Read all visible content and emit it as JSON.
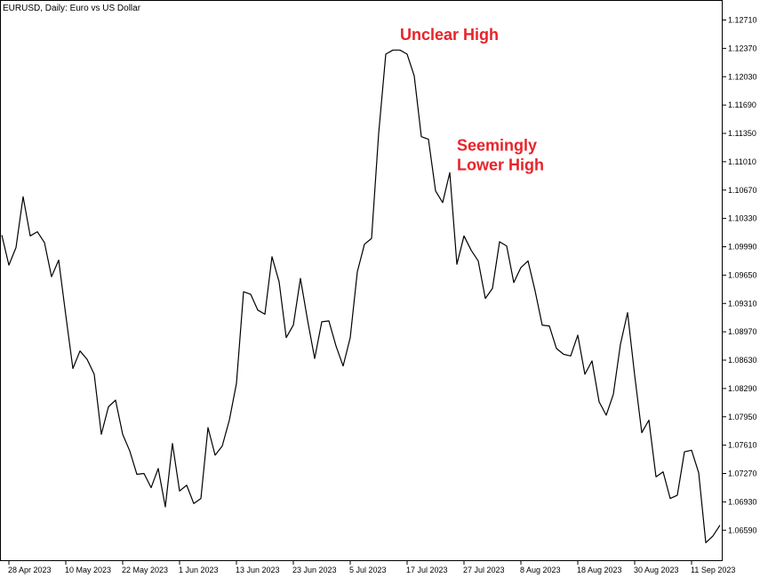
{
  "chart_data": {
    "type": "line",
    "title": "EURUSD, Daily:  Euro vs US Dollar",
    "line_color": "#000000",
    "annotation_color": "#e8232a",
    "annotations": [
      {
        "lines": [
          "Unclear High"
        ],
        "x": "2023-07-14",
        "y": 1.1247
      },
      {
        "lines": [
          "Seemingly",
          "Lower High"
        ],
        "x": "2023-07-26",
        "y": 1.1114
      }
    ],
    "ylim": [
      1.0623,
      1.1295
    ],
    "y_ticks": [
      1.1271,
      1.1237,
      1.1203,
      1.1169,
      1.1135,
      1.1101,
      1.1067,
      1.1033,
      1.0999,
      1.0965,
      1.0931,
      1.0897,
      1.0863,
      1.0829,
      1.0795,
      1.0761,
      1.0727,
      1.0693,
      1.0659
    ],
    "x_ticks": [
      "28 Apr 2023",
      "10 May 2023",
      "22 May 2023",
      "1 Jun 2023",
      "13 Jun 2023",
      "23 Jun 2023",
      "5 Jul 2023",
      "17 Jul 2023",
      "27 Jul 2023",
      "8 Aug 2023",
      "18 Aug 2023",
      "30 Aug 2023",
      "11 Sep 2023"
    ],
    "x": [
      "2023-04-27",
      "2023-04-28",
      "2023-05-01",
      "2023-05-02",
      "2023-05-03",
      "2023-05-04",
      "2023-05-05",
      "2023-05-08",
      "2023-05-09",
      "2023-05-10",
      "2023-05-11",
      "2023-05-12",
      "2023-05-15",
      "2023-05-16",
      "2023-05-17",
      "2023-05-18",
      "2023-05-19",
      "2023-05-22",
      "2023-05-23",
      "2023-05-24",
      "2023-05-25",
      "2023-05-26",
      "2023-05-29",
      "2023-05-30",
      "2023-05-31",
      "2023-06-01",
      "2023-06-02",
      "2023-06-05",
      "2023-06-06",
      "2023-06-07",
      "2023-06-08",
      "2023-06-09",
      "2023-06-12",
      "2023-06-13",
      "2023-06-14",
      "2023-06-15",
      "2023-06-16",
      "2023-06-19",
      "2023-06-20",
      "2023-06-21",
      "2023-06-22",
      "2023-06-23",
      "2023-06-26",
      "2023-06-27",
      "2023-06-28",
      "2023-06-29",
      "2023-06-30",
      "2023-07-03",
      "2023-07-04",
      "2023-07-05",
      "2023-07-06",
      "2023-07-07",
      "2023-07-10",
      "2023-07-11",
      "2023-07-12",
      "2023-07-13",
      "2023-07-14",
      "2023-07-17",
      "2023-07-18",
      "2023-07-19",
      "2023-07-20",
      "2023-07-21",
      "2023-07-24",
      "2023-07-25",
      "2023-07-26",
      "2023-07-27",
      "2023-07-28",
      "2023-07-31",
      "2023-08-01",
      "2023-08-02",
      "2023-08-03",
      "2023-08-04",
      "2023-08-07",
      "2023-08-08",
      "2023-08-09",
      "2023-08-10",
      "2023-08-11",
      "2023-08-14",
      "2023-08-15",
      "2023-08-16",
      "2023-08-17",
      "2023-08-18",
      "2023-08-21",
      "2023-08-22",
      "2023-08-23",
      "2023-08-24",
      "2023-08-25",
      "2023-08-28",
      "2023-08-29",
      "2023-08-30",
      "2023-08-31",
      "2023-09-01",
      "2023-09-04",
      "2023-09-05",
      "2023-09-06",
      "2023-09-07",
      "2023-09-08",
      "2023-09-11",
      "2023-09-12",
      "2023-09-13",
      "2023-09-14",
      "2023-09-15"
    ],
    "y": [
      1.1013,
      1.0977,
      1.0998,
      1.1059,
      1.1012,
      1.1017,
      1.1004,
      1.0963,
      1.0983,
      1.0917,
      1.0853,
      1.0874,
      1.0864,
      1.0846,
      1.0774,
      1.0807,
      1.0815,
      1.0774,
      1.0754,
      1.0726,
      1.0727,
      1.071,
      1.0733,
      1.0687,
      1.0763,
      1.0706,
      1.0713,
      1.0691,
      1.0697,
      1.0782,
      1.0749,
      1.076,
      1.0791,
      1.0835,
      1.0945,
      1.0942,
      1.0923,
      1.0918,
      1.0987,
      1.0957,
      1.089,
      1.0905,
      1.0961,
      1.0911,
      1.0865,
      1.0909,
      1.091,
      1.088,
      1.0856,
      1.089,
      1.0969,
      1.1002,
      1.1009,
      1.1135,
      1.123,
      1.1235,
      1.1235,
      1.123,
      1.1204,
      1.1131,
      1.1128,
      1.1066,
      1.1052,
      1.1088,
      1.0978,
      1.1012,
      1.0995,
      1.0982,
      1.0937,
      1.0949,
      1.1005,
      1.1,
      1.0956,
      1.0974,
      1.0982,
      1.0946,
      1.0905,
      1.0904,
      1.0877,
      1.087,
      1.0868,
      1.0893,
      1.0846,
      1.0862,
      1.0813,
      1.0797,
      1.0822,
      1.0882,
      1.092,
      1.0845,
      1.0776,
      1.0791,
      1.0723,
      1.0729,
      1.0697,
      1.0701,
      1.0753,
      1.0755,
      1.0728,
      1.0644,
      1.0652,
      1.0665
    ]
  }
}
